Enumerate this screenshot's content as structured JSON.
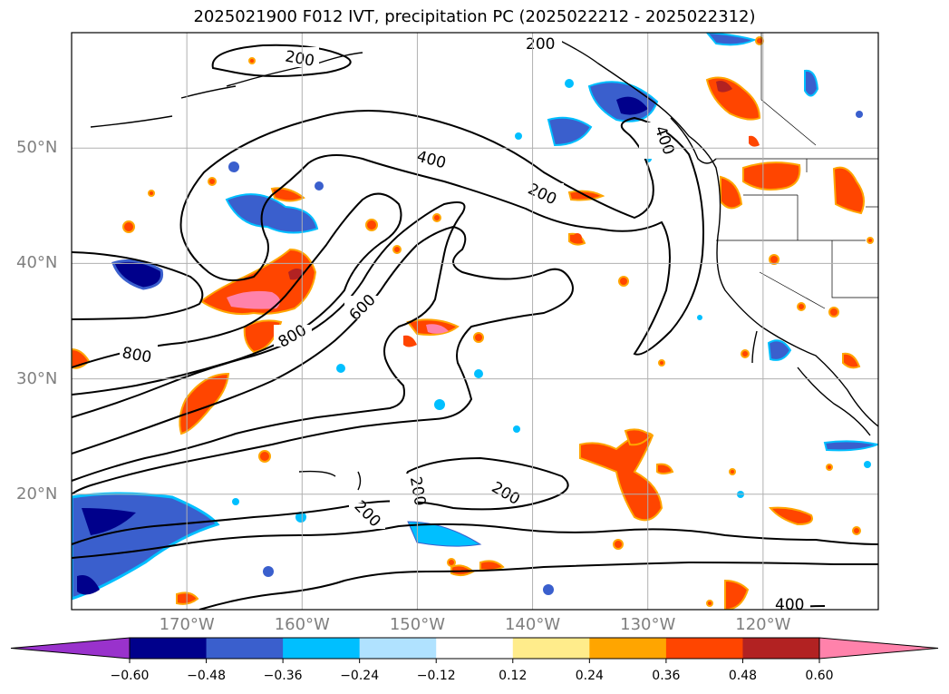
{
  "title": "2025021900 F012 IVT, precipitation PC (2025022212 - 2025022312)",
  "chart_data": {
    "type": "heatmap",
    "title": "2025021900 F012 IVT, precipitation PC (2025022212 - 2025022312)",
    "map_extent": {
      "lon": [
        -180,
        -110
      ],
      "lat": [
        10,
        60
      ]
    },
    "lat_ticks": [
      {
        "value": 50,
        "label": "50°N"
      },
      {
        "value": 40,
        "label": "40°N"
      },
      {
        "value": 30,
        "label": "30°N"
      },
      {
        "value": 20,
        "label": "20°N"
      }
    ],
    "lon_ticks": [
      {
        "value": -170,
        "label": "170°W"
      },
      {
        "value": -160,
        "label": "160°W"
      },
      {
        "value": -150,
        "label": "150°W"
      },
      {
        "value": -140,
        "label": "140°W"
      },
      {
        "value": -130,
        "label": "130°W"
      },
      {
        "value": -120,
        "label": "120°W"
      }
    ],
    "grid": true,
    "ivt_contour_levels": [
      200,
      400,
      600,
      800
    ],
    "ivt_contour_labels": [
      "200",
      "200",
      "200",
      "200",
      "200",
      "200",
      "400",
      "400",
      "400",
      "600",
      "800",
      "800"
    ],
    "colorbar": {
      "orientation": "horizontal",
      "extend": "both",
      "bounds": [
        -0.6,
        -0.48,
        -0.36,
        -0.24,
        -0.12,
        0.12,
        0.24,
        0.36,
        0.48,
        0.6
      ],
      "tick_labels": [
        "−0.60",
        "−0.48",
        "−0.36",
        "−0.24",
        "−0.12",
        "0.12",
        "0.24",
        "0.36",
        "0.48",
        "0.60"
      ],
      "colors": [
        "#9932cc",
        "#00008b",
        "#3a5fcd",
        "#00bfff",
        "#b0e2ff",
        "#ffffff",
        "#ffec8b",
        "#ffa500",
        "#ff4500",
        "#b22222",
        "#ff82ab"
      ]
    }
  }
}
